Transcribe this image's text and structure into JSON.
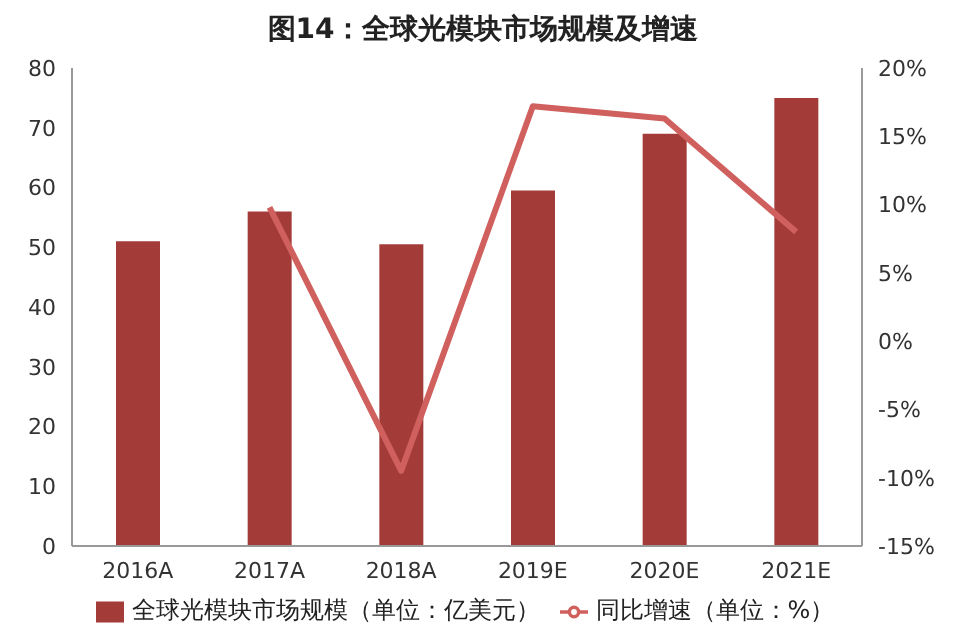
{
  "chart_data": {
    "type": "bar",
    "title": "图14：全球光模块市场规模及增速",
    "categories": [
      "2016A",
      "2017A",
      "2018A",
      "2019E",
      "2020E",
      "2021E"
    ],
    "series": [
      {
        "name": "全球光模块市场规模（单位：亿美元）",
        "color": "#a33b39",
        "values": [
          51,
          56,
          50.5,
          59.5,
          69,
          75
        ]
      },
      {
        "name": "同比增速（单位：%）",
        "type": "line",
        "axis": "y2",
        "color": "#d0605d",
        "values": [
          null,
          9.8,
          -9.5,
          17.2,
          16.3,
          8
        ]
      }
    ],
    "ylim": [
      0,
      80
    ],
    "yticks": [
      0,
      10,
      20,
      30,
      40,
      50,
      60,
      70,
      80
    ],
    "y2lim": [
      -15,
      20
    ],
    "y2ticks": [
      {
        "value": -15,
        "label": "-15%"
      },
      {
        "value": -10,
        "label": "-10%"
      },
      {
        "value": -5,
        "label": "-5%"
      },
      {
        "value": 0,
        "label": "0%"
      },
      {
        "value": 5,
        "label": "5%"
      },
      {
        "value": 10,
        "label": "10%"
      },
      {
        "value": 15,
        "label": "15%"
      },
      {
        "value": 20,
        "label": "20%"
      }
    ],
    "legend": "bottom",
    "marker": "none",
    "grid": false
  }
}
